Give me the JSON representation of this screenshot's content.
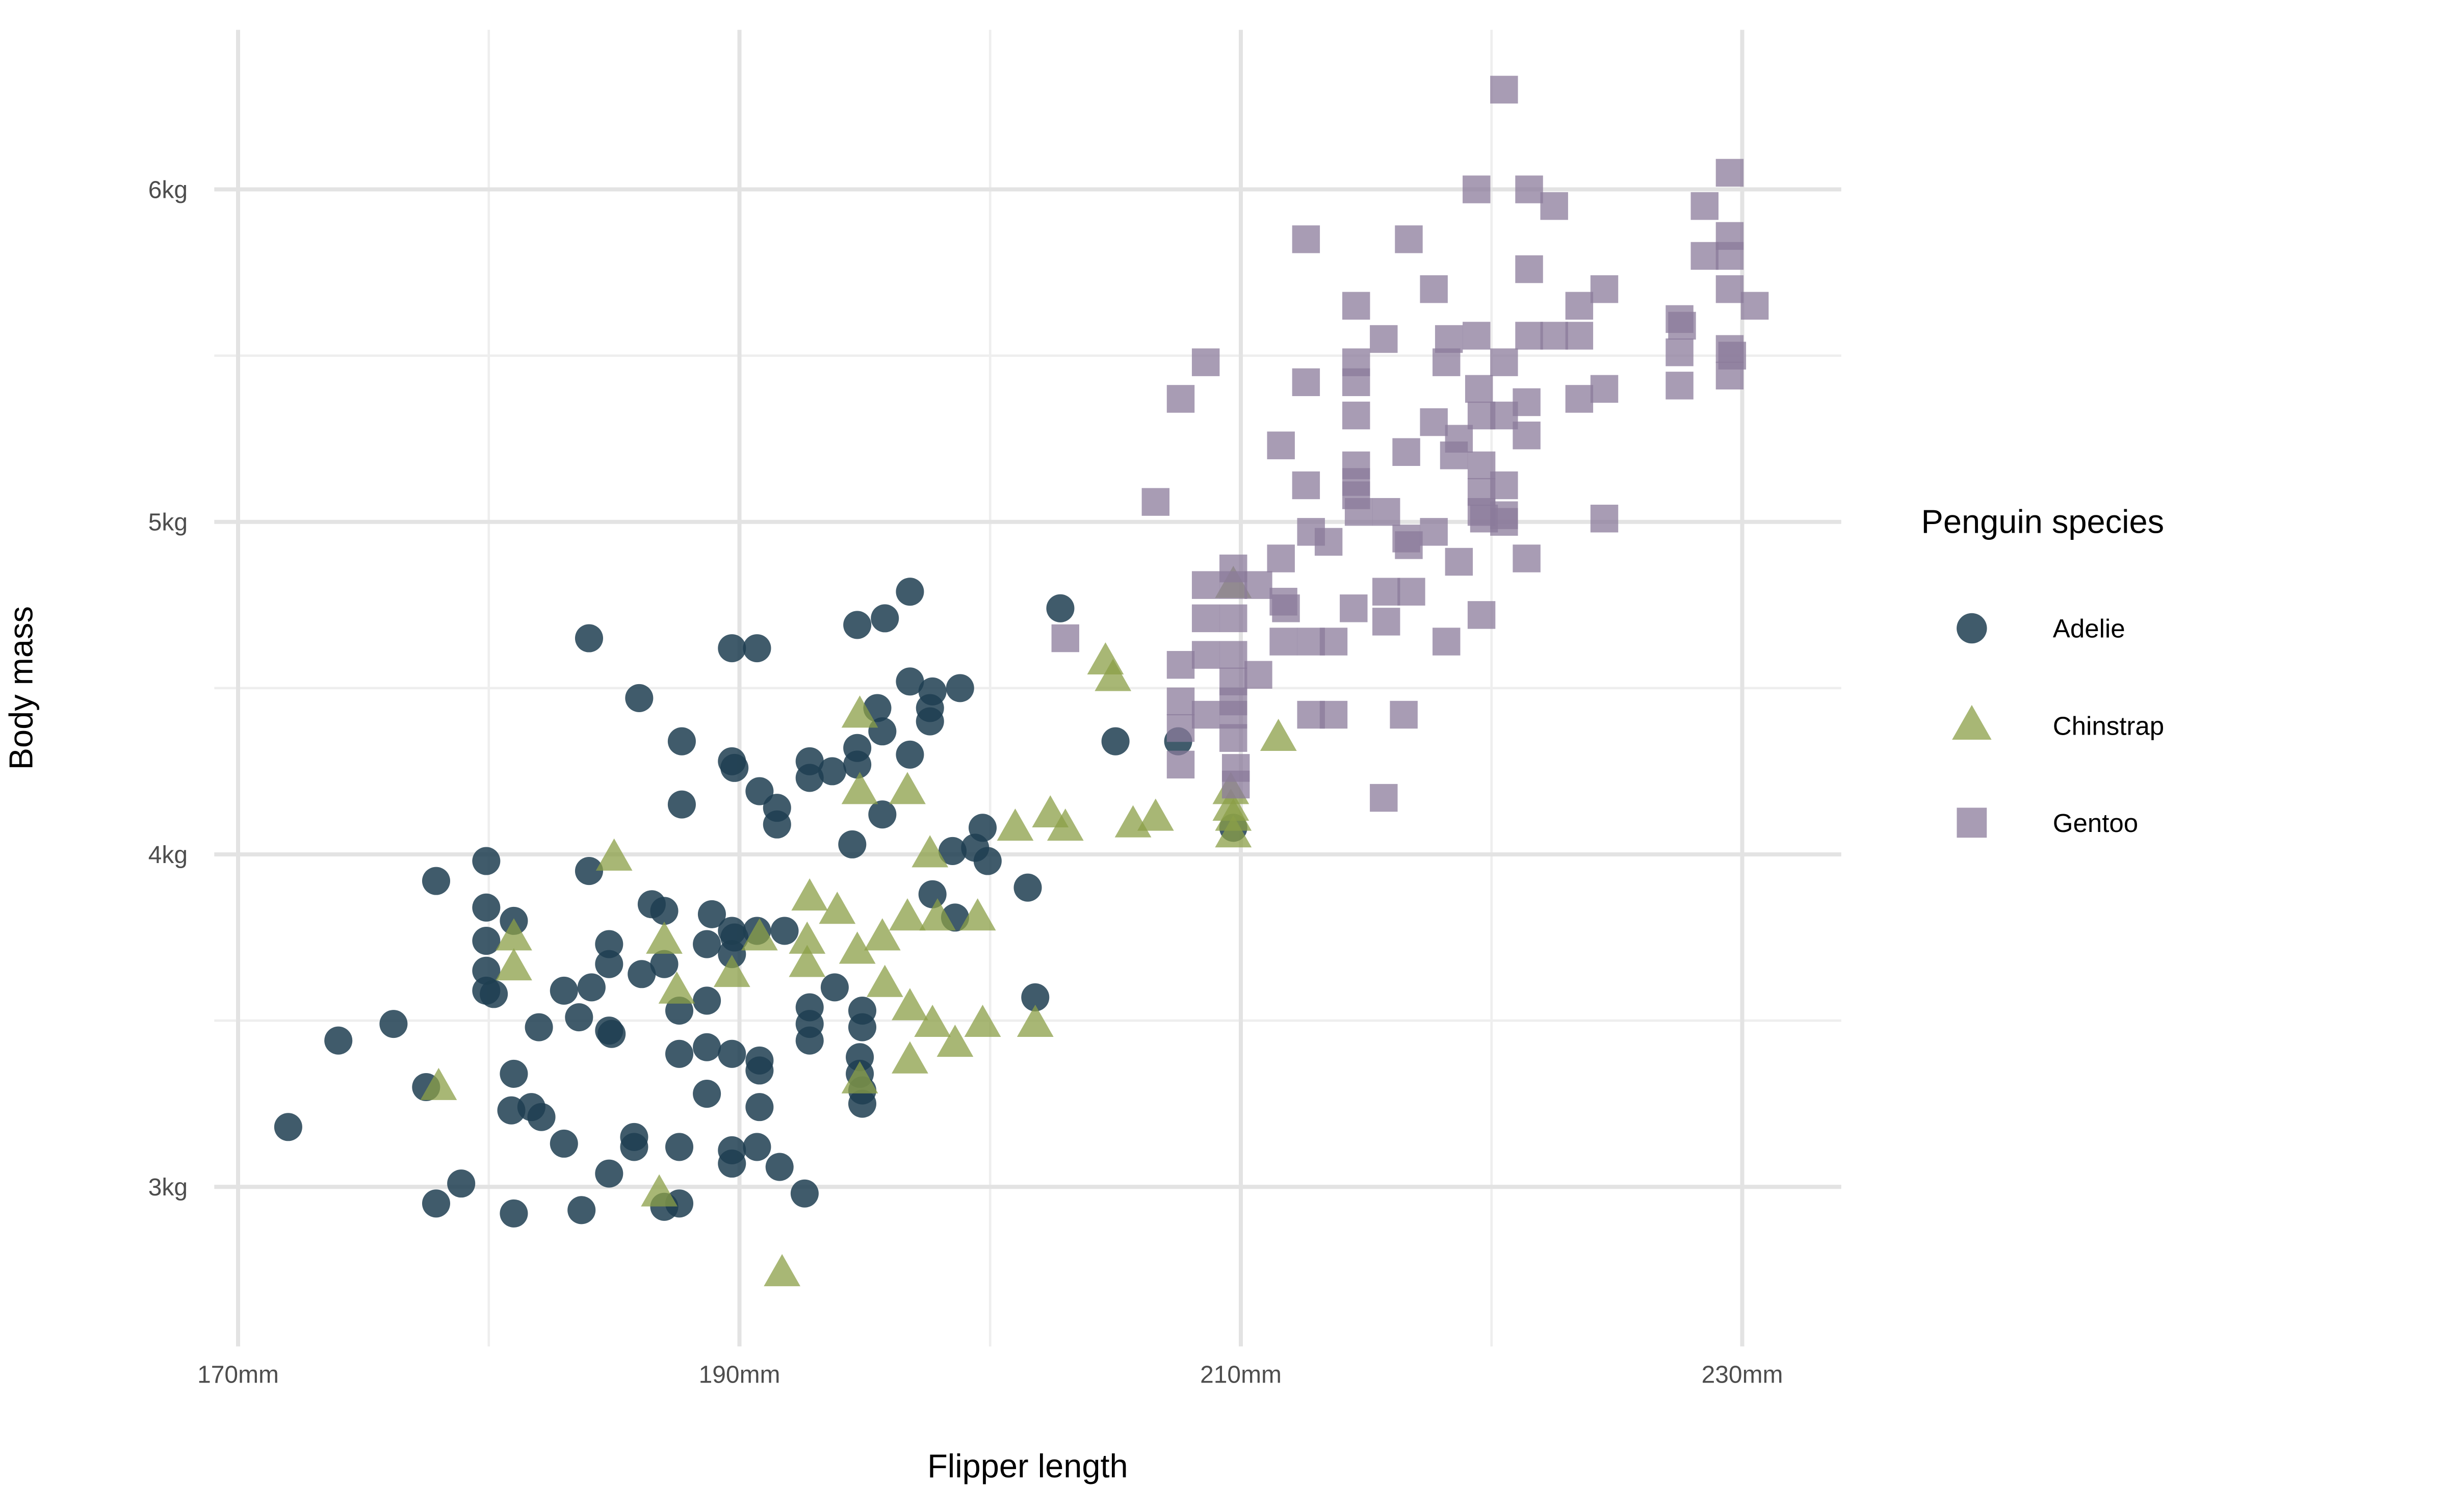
{
  "figure": {
    "background": "#ffffff"
  },
  "axes": {
    "x_title": "Flipper length",
    "y_title": "Body mass"
  },
  "legend": {
    "title": "Penguin species",
    "entries": [
      {
        "label": "Adelie",
        "shape": "circle"
      },
      {
        "label": "Chinstrap",
        "shape": "triangle"
      },
      {
        "label": "Gentoo",
        "shape": "square"
      }
    ]
  },
  "colors": {
    "adelie": "#1f3e51",
    "chinstrap": "#8b9f47",
    "gentoo": "#8b7b9b",
    "adelie_opacity": 0.85,
    "chinstrap_opacity": 0.75,
    "gentoo_opacity": 0.75,
    "grid_major": "#e3e3e3",
    "grid_minor": "#eeeeee",
    "tick_text": "#4d4d4d",
    "title_text": "#000000"
  },
  "chart_data": {
    "type": "scatter",
    "title": "",
    "xlabel": "Flipper length",
    "ylabel": "Body mass",
    "x_units": "mm",
    "y_units": "kg",
    "x_domain": [
      169.05,
      233.95
    ],
    "y_domain": [
      2.52,
      6.48
    ],
    "x_major_ticks": [
      170,
      190,
      210,
      230
    ],
    "x_minor_ticks": [
      180,
      200,
      220
    ],
    "y_major_ticks": [
      3,
      4,
      5,
      6
    ],
    "y_minor_ticks": [
      3.5,
      4.5,
      5.5
    ],
    "x_tick_labels": [
      "170mm",
      "190mm",
      "210mm",
      "230mm"
    ],
    "y_tick_labels": [
      "3kg",
      "4kg",
      "5kg",
      "6kg"
    ],
    "grid": true,
    "legend_position": "right",
    "series": [
      {
        "name": "Adelie",
        "marker": "circle",
        "points": [
          [
            172,
            3.18
          ],
          [
            174,
            3.44
          ],
          [
            176.2,
            3.49
          ],
          [
            177.5,
            3.3
          ],
          [
            177.9,
            2.95
          ],
          [
            177.9,
            3.92
          ],
          [
            178.9,
            3.01
          ],
          [
            179.9,
            3.98
          ],
          [
            179.9,
            3.84
          ],
          [
            179.9,
            3.74
          ],
          [
            179.9,
            3.65
          ],
          [
            179.9,
            3.59
          ],
          [
            180.2,
            3.58
          ],
          [
            180.9,
            3.23
          ],
          [
            181,
            3.8
          ],
          [
            181,
            3.34
          ],
          [
            181,
            2.92
          ],
          [
            181.7,
            3.24
          ],
          [
            182,
            3.48
          ],
          [
            182.1,
            3.21
          ],
          [
            183,
            3.59
          ],
          [
            183,
            3.13
          ],
          [
            183.6,
            3.51
          ],
          [
            183.7,
            2.93
          ],
          [
            184,
            3.95
          ],
          [
            184,
            4.65
          ],
          [
            184.1,
            3.6
          ],
          [
            184.8,
            3.73
          ],
          [
            184.8,
            3.67
          ],
          [
            184.8,
            3.47
          ],
          [
            184.9,
            3.46
          ],
          [
            184.8,
            3.04
          ],
          [
            185.8,
            3.15
          ],
          [
            185.8,
            3.12
          ],
          [
            186,
            4.47
          ],
          [
            186.5,
            3.85
          ],
          [
            186.1,
            3.64
          ],
          [
            187,
            3.83
          ],
          [
            187,
            3.67
          ],
          [
            187,
            2.94
          ],
          [
            187.6,
            3.12
          ],
          [
            187.6,
            2.95
          ],
          [
            187.6,
            3.4
          ],
          [
            187.6,
            3.53
          ],
          [
            187.7,
            4.34
          ],
          [
            187.7,
            4.15
          ],
          [
            188.7,
            3.73
          ],
          [
            188.7,
            3.56
          ],
          [
            188.7,
            3.42
          ],
          [
            188.7,
            3.28
          ],
          [
            188.9,
            3.82
          ],
          [
            189.7,
            4.62
          ],
          [
            189.7,
            4.28
          ],
          [
            189.8,
            4.26
          ],
          [
            189.7,
            3.77
          ],
          [
            189.8,
            3.75
          ],
          [
            189.7,
            3.7
          ],
          [
            189.7,
            3.4
          ],
          [
            189.7,
            3.11
          ],
          [
            189.7,
            3.07
          ],
          [
            190.7,
            4.62
          ],
          [
            190.7,
            3.77
          ],
          [
            190.8,
            4.19
          ],
          [
            190.8,
            3.38
          ],
          [
            190.8,
            3.35
          ],
          [
            190.8,
            3.24
          ],
          [
            190.7,
            3.12
          ],
          [
            191.5,
            4.14
          ],
          [
            191.5,
            4.09
          ],
          [
            191.6,
            3.06
          ],
          [
            191.8,
            3.77
          ],
          [
            192.6,
            2.98
          ],
          [
            192.8,
            4.28
          ],
          [
            192.8,
            4.23
          ],
          [
            192.8,
            3.54
          ],
          [
            192.8,
            3.49
          ],
          [
            192.8,
            3.44
          ],
          [
            193.7,
            4.25
          ],
          [
            193.8,
            3.6
          ],
          [
            194.5,
            4.03
          ],
          [
            194.7,
            4.69
          ],
          [
            194.7,
            4.32
          ],
          [
            194.7,
            4.27
          ],
          [
            194.9,
            3.53
          ],
          [
            194.9,
            3.48
          ],
          [
            194.9,
            3.29
          ],
          [
            194.9,
            3.25
          ],
          [
            194.8,
            3.39
          ],
          [
            194.8,
            3.34
          ],
          [
            195.5,
            4.44
          ],
          [
            195.7,
            4.37
          ],
          [
            195.7,
            4.12
          ],
          [
            195.8,
            4.71
          ],
          [
            196.8,
            4.79
          ],
          [
            196.8,
            4.52
          ],
          [
            196.8,
            4.3
          ],
          [
            197.6,
            4.44
          ],
          [
            197.6,
            4.4
          ],
          [
            197.7,
            4.49
          ],
          [
            197.7,
            3.88
          ],
          [
            198.5,
            4.01
          ],
          [
            198.6,
            3.81
          ],
          [
            198.8,
            4.5
          ],
          [
            199.4,
            4.02
          ],
          [
            199.7,
            4.08
          ],
          [
            199.9,
            3.98
          ],
          [
            201.5,
            3.9
          ],
          [
            201.8,
            3.57
          ],
          [
            202.8,
            4.74
          ],
          [
            205,
            4.34
          ],
          [
            207.5,
            4.34
          ],
          [
            209.7,
            4.08
          ]
        ]
      },
      {
        "name": "Chinstrap",
        "marker": "triangle",
        "points": [
          [
            178,
            3.3
          ],
          [
            181,
            3.75
          ],
          [
            181,
            3.66
          ],
          [
            185,
            3.99
          ],
          [
            186.8,
            2.98
          ],
          [
            187,
            3.74
          ],
          [
            187.5,
            3.59
          ],
          [
            189.7,
            3.64
          ],
          [
            190.8,
            3.75
          ],
          [
            191.7,
            2.74
          ],
          [
            192.7,
            3.74
          ],
          [
            192.7,
            3.67
          ],
          [
            192.8,
            3.87
          ],
          [
            193.9,
            3.83
          ],
          [
            194.7,
            3.71
          ],
          [
            194.8,
            4.42
          ],
          [
            194.8,
            4.19
          ],
          [
            194.8,
            3.32
          ],
          [
            195.7,
            3.75
          ],
          [
            195.8,
            3.61
          ],
          [
            196.7,
            4.19
          ],
          [
            196.7,
            3.81
          ],
          [
            196.8,
            3.54
          ],
          [
            196.8,
            3.38
          ],
          [
            197.6,
            4
          ],
          [
            197.9,
            3.81
          ],
          [
            197.7,
            3.49
          ],
          [
            198.6,
            3.43
          ],
          [
            199.5,
            3.81
          ],
          [
            199.7,
            3.49
          ],
          [
            201,
            4.08
          ],
          [
            201.8,
            3.49
          ],
          [
            202.4,
            4.12
          ],
          [
            203,
            4.08
          ],
          [
            204.6,
            4.58
          ],
          [
            204.9,
            4.53
          ],
          [
            205.7,
            4.09
          ],
          [
            206.6,
            4.11
          ],
          [
            209.6,
            4.19
          ],
          [
            209.6,
            4.14
          ],
          [
            209.7,
            4.81
          ],
          [
            209.7,
            4.11
          ],
          [
            209.7,
            4.06
          ],
          [
            211.5,
            4.35
          ]
        ]
      },
      {
        "name": "Gentoo",
        "marker": "square",
        "points": [
          [
            220.5,
            6.3
          ],
          [
            229.5,
            6.05
          ],
          [
            219.4,
            6
          ],
          [
            221.5,
            6
          ],
          [
            222.5,
            5.95
          ],
          [
            228.5,
            5.95
          ],
          [
            229.5,
            5.86
          ],
          [
            212.6,
            5.85
          ],
          [
            216.7,
            5.85
          ],
          [
            228.5,
            5.8
          ],
          [
            229.5,
            5.8
          ],
          [
            221.5,
            5.76
          ],
          [
            217.7,
            5.7
          ],
          [
            224.5,
            5.7
          ],
          [
            229.5,
            5.7
          ],
          [
            223.5,
            5.65
          ],
          [
            214.6,
            5.65
          ],
          [
            230.5,
            5.65
          ],
          [
            227.5,
            5.61
          ],
          [
            227.6,
            5.59
          ],
          [
            215.7,
            5.55
          ],
          [
            218.3,
            5.55
          ],
          [
            221.5,
            5.56
          ],
          [
            222.5,
            5.56
          ],
          [
            223.5,
            5.56
          ],
          [
            219.4,
            5.56
          ],
          [
            227.5,
            5.51
          ],
          [
            229.5,
            5.52
          ],
          [
            229.6,
            5.5
          ],
          [
            214.6,
            5.48
          ],
          [
            208.6,
            5.48
          ],
          [
            218.2,
            5.48
          ],
          [
            220.5,
            5.48
          ],
          [
            219.5,
            5.4
          ],
          [
            224.5,
            5.4
          ],
          [
            227.5,
            5.41
          ],
          [
            229.5,
            5.44
          ],
          [
            212.6,
            5.42
          ],
          [
            214.6,
            5.42
          ],
          [
            221.4,
            5.36
          ],
          [
            223.5,
            5.37
          ],
          [
            219.6,
            5.32
          ],
          [
            220.5,
            5.32
          ],
          [
            214.6,
            5.32
          ],
          [
            217.7,
            5.3
          ],
          [
            207.6,
            5.37
          ],
          [
            218.7,
            5.25
          ],
          [
            221.4,
            5.26
          ],
          [
            211.6,
            5.23
          ],
          [
            216.6,
            5.21
          ],
          [
            218.5,
            5.2
          ],
          [
            219.6,
            5.17
          ],
          [
            214.6,
            5.17
          ],
          [
            220.5,
            5.11
          ],
          [
            212.6,
            5.11
          ],
          [
            214.6,
            5.12
          ],
          [
            214.6,
            5.08
          ],
          [
            219.6,
            5.09
          ],
          [
            206.6,
            5.06
          ],
          [
            214.7,
            5.03
          ],
          [
            215.8,
            5.03
          ],
          [
            219.6,
            5.03
          ],
          [
            219.7,
            5.01
          ],
          [
            220.5,
            5.02
          ],
          [
            220.5,
            5
          ],
          [
            224.5,
            5.01
          ],
          [
            212.8,
            4.97
          ],
          [
            217.7,
            4.97
          ],
          [
            213.5,
            4.94
          ],
          [
            216.6,
            4.95
          ],
          [
            216.7,
            4.93
          ],
          [
            211.6,
            4.89
          ],
          [
            218.7,
            4.88
          ],
          [
            221.4,
            4.89
          ],
          [
            209.7,
            4.86
          ],
          [
            208.6,
            4.81
          ],
          [
            209.7,
            4.81
          ],
          [
            210.7,
            4.81
          ],
          [
            211.7,
            4.76
          ],
          [
            211.8,
            4.74
          ],
          [
            214.5,
            4.74
          ],
          [
            215.8,
            4.79
          ],
          [
            216.8,
            4.79
          ],
          [
            219.6,
            4.72
          ],
          [
            208.6,
            4.71
          ],
          [
            209.7,
            4.71
          ],
          [
            215.8,
            4.7
          ],
          [
            211.7,
            4.64
          ],
          [
            212.8,
            4.64
          ],
          [
            213.7,
            4.64
          ],
          [
            218.2,
            4.64
          ],
          [
            209.7,
            4.6
          ],
          [
            208.6,
            4.6
          ],
          [
            207.6,
            4.57
          ],
          [
            209.7,
            4.52
          ],
          [
            210.7,
            4.54
          ],
          [
            207.6,
            4.46
          ],
          [
            209.7,
            4.46
          ],
          [
            208.6,
            4.42
          ],
          [
            212.8,
            4.42
          ],
          [
            213.7,
            4.42
          ],
          [
            216.5,
            4.42
          ],
          [
            209.7,
            4.42
          ],
          [
            209.7,
            4.35
          ],
          [
            209.8,
            4.26
          ],
          [
            209.8,
            4.21
          ],
          [
            207.6,
            4.38
          ],
          [
            207.6,
            4.27
          ],
          [
            215.7,
            4.17
          ],
          [
            203,
            4.65
          ]
        ]
      }
    ]
  }
}
